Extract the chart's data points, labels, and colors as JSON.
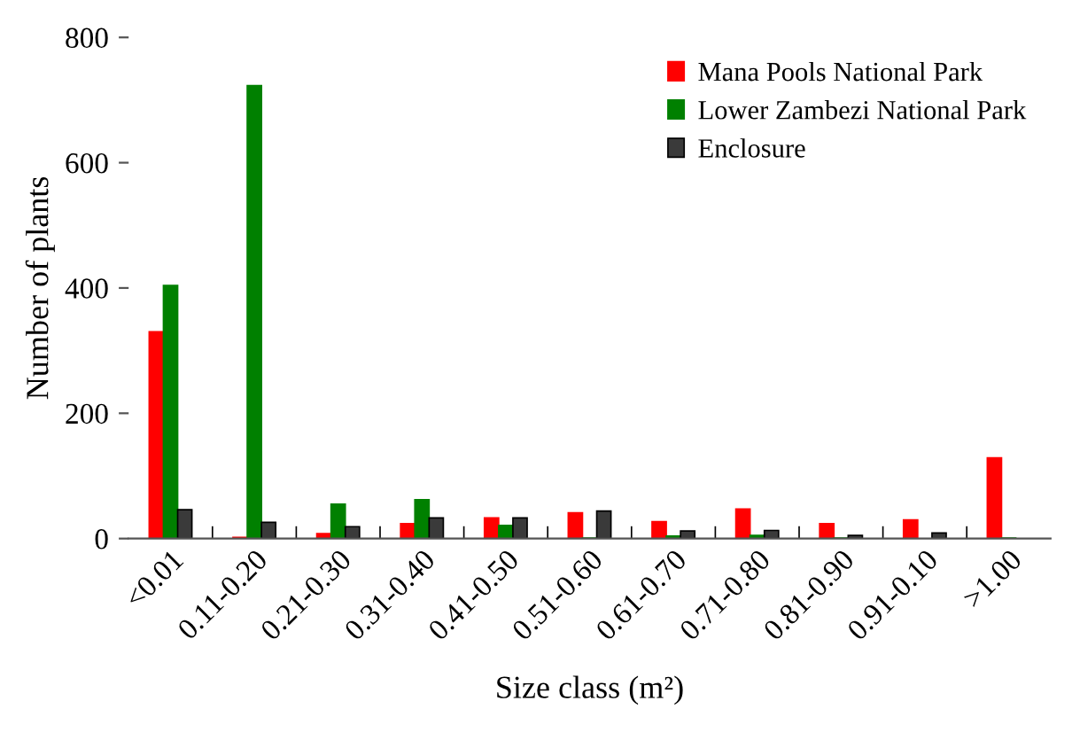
{
  "chart_data": {
    "type": "bar",
    "xlabel": "Size class (m²)",
    "ylabel": "Number of plants",
    "categories": [
      "<0.01",
      "0.11-0.20",
      "0.21-0.30",
      "0.31-0.40",
      "0.41-0.50",
      "0.51-0.60",
      "0.61-0.70",
      "0.71-0.80",
      "0.81-0.90",
      "0.91-0.10",
      ">1.00"
    ],
    "series": [
      {
        "name": "Mana Pools National Park",
        "color": "#ff0000",
        "values": [
          330,
          2,
          8,
          24,
          33,
          41,
          27,
          47,
          24,
          30,
          129
        ]
      },
      {
        "name": "Lower Zambezi National Park",
        "color": "#008000",
        "values": [
          404,
          723,
          55,
          62,
          21,
          1,
          4,
          5,
          1,
          0,
          1
        ]
      },
      {
        "name": "Enclosure",
        "color": "#3a3a3a",
        "values": [
          46,
          26,
          19,
          33,
          33,
          44,
          12,
          13,
          5,
          9,
          0
        ]
      }
    ],
    "ylim": [
      0,
      800
    ],
    "yticks": [
      0,
      200,
      400,
      600,
      800
    ],
    "grid": false,
    "legend": "top right"
  }
}
